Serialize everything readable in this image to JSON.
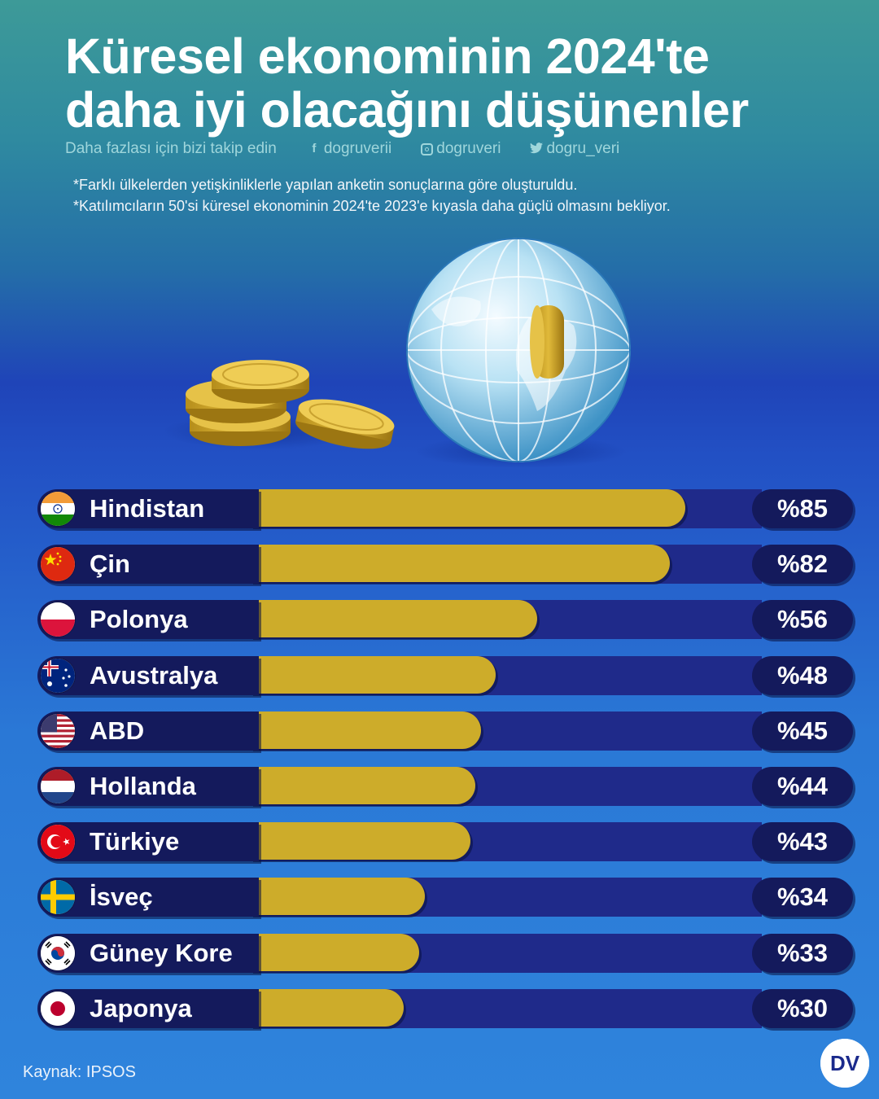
{
  "title": {
    "line1": "Küresel ekonominin 2024'te",
    "line2": "daha iyi olacağını düşünenler"
  },
  "social": {
    "follow_text": "Daha fazlası için bizi takip edin",
    "facebook": "dogruverii",
    "instagram": "dogruveri",
    "twitter": "dogru_veri"
  },
  "notes": [
    "*Farklı ülkelerden yetişkinliklerle yapılan anketin sonuçlarına göre oluşturuldu.",
    "*Katılımcıların 50'si küresel ekonominin 2024'te 2023'e kıyasla daha güçlü olmasını bekliyor."
  ],
  "source": "Kaynak: IPSOS",
  "logo_text": "DV",
  "colors": {
    "bar": "#cdac2a",
    "track": "#1f2a8a",
    "pill": "#141a5c"
  },
  "chart_data": {
    "type": "bar",
    "orientation": "horizontal",
    "value_prefix": "%",
    "xlim": [
      0,
      100
    ],
    "categories": [
      "Hindistan",
      "Çin",
      "Polonya",
      "Avustralya",
      "ABD",
      "Hollanda",
      "Türkiye",
      "İsveç",
      "Güney Kore",
      "Japonya"
    ],
    "values": [
      85,
      82,
      56,
      48,
      45,
      44,
      43,
      34,
      33,
      30
    ],
    "labels": [
      "%85",
      "%82",
      "%56",
      "%48",
      "%45",
      "%44",
      "%43",
      "%34",
      "%33",
      "%30"
    ],
    "flags": [
      "india-flag-icon",
      "china-flag-icon",
      "poland-flag-icon",
      "australia-flag-icon",
      "usa-flag-icon",
      "netherlands-flag-icon",
      "turkey-flag-icon",
      "sweden-flag-icon",
      "south-korea-flag-icon",
      "japan-flag-icon"
    ]
  }
}
